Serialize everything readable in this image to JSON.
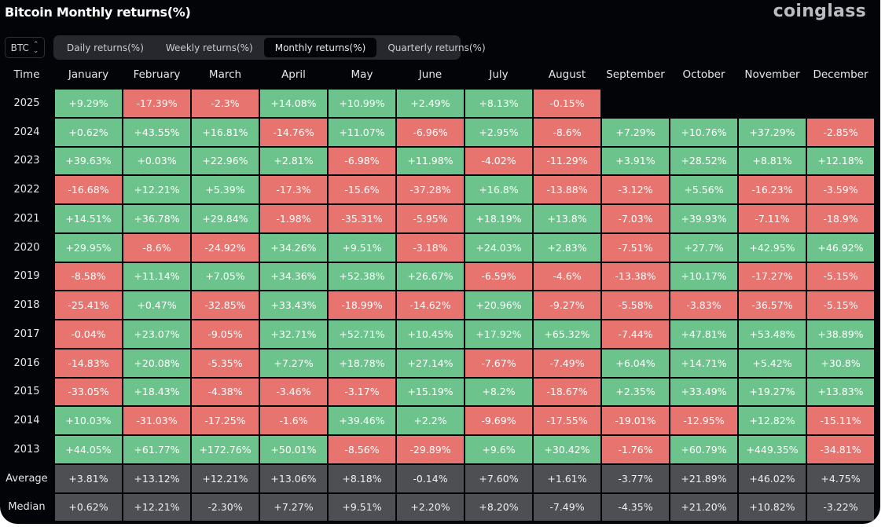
{
  "header": {
    "title": "Bitcoin Monthly returns(%)",
    "logo": "coinglass"
  },
  "asset_selector": {
    "value": "BTC",
    "icon": "chevron-up-down-icon"
  },
  "tabs": [
    {
      "label": "Daily returns(%)",
      "active": false
    },
    {
      "label": "Weekly returns(%)",
      "active": false
    },
    {
      "label": "Monthly returns(%)",
      "active": true
    },
    {
      "label": "Quarterly returns(%)",
      "active": false
    }
  ],
  "colors": {
    "positive": "#6cc48c",
    "negative": "#e8746f",
    "stat": "#4e4f53"
  },
  "table": {
    "time_label": "Time",
    "months": [
      "January",
      "February",
      "March",
      "April",
      "May",
      "June",
      "July",
      "August",
      "September",
      "October",
      "November",
      "December"
    ],
    "rows": [
      {
        "year": "2025",
        "values": [
          "+9.29%",
          "-17.39%",
          "-2.3%",
          "+14.08%",
          "+10.99%",
          "+2.49%",
          "+8.13%",
          "-0.15%",
          "",
          "",
          "",
          ""
        ]
      },
      {
        "year": "2024",
        "values": [
          "+0.62%",
          "+43.55%",
          "+16.81%",
          "-14.76%",
          "+11.07%",
          "-6.96%",
          "+2.95%",
          "-8.6%",
          "+7.29%",
          "+10.76%",
          "+37.29%",
          "-2.85%"
        ]
      },
      {
        "year": "2023",
        "values": [
          "+39.63%",
          "+0.03%",
          "+22.96%",
          "+2.81%",
          "-6.98%",
          "+11.98%",
          "-4.02%",
          "-11.29%",
          "+3.91%",
          "+28.52%",
          "+8.81%",
          "+12.18%"
        ]
      },
      {
        "year": "2022",
        "values": [
          "-16.68%",
          "+12.21%",
          "+5.39%",
          "-17.3%",
          "-15.6%",
          "-37.28%",
          "+16.8%",
          "-13.88%",
          "-3.12%",
          "+5.56%",
          "-16.23%",
          "-3.59%"
        ]
      },
      {
        "year": "2021",
        "values": [
          "+14.51%",
          "+36.78%",
          "+29.84%",
          "-1.98%",
          "-35.31%",
          "-5.95%",
          "+18.19%",
          "+13.8%",
          "-7.03%",
          "+39.93%",
          "-7.11%",
          "-18.9%"
        ]
      },
      {
        "year": "2020",
        "values": [
          "+29.95%",
          "-8.6%",
          "-24.92%",
          "+34.26%",
          "+9.51%",
          "-3.18%",
          "+24.03%",
          "+2.83%",
          "-7.51%",
          "+27.7%",
          "+42.95%",
          "+46.92%"
        ]
      },
      {
        "year": "2019",
        "values": [
          "-8.58%",
          "+11.14%",
          "+7.05%",
          "+34.36%",
          "+52.38%",
          "+26.67%",
          "-6.59%",
          "-4.6%",
          "-13.38%",
          "+10.17%",
          "-17.27%",
          "-5.15%"
        ]
      },
      {
        "year": "2018",
        "values": [
          "-25.41%",
          "+0.47%",
          "-32.85%",
          "+33.43%",
          "-18.99%",
          "-14.62%",
          "+20.96%",
          "-9.27%",
          "-5.58%",
          "-3.83%",
          "-36.57%",
          "-5.15%"
        ]
      },
      {
        "year": "2017",
        "values": [
          "-0.04%",
          "+23.07%",
          "-9.05%",
          "+32.71%",
          "+52.71%",
          "+10.45%",
          "+17.92%",
          "+65.32%",
          "-7.44%",
          "+47.81%",
          "+53.48%",
          "+38.89%"
        ]
      },
      {
        "year": "2016",
        "values": [
          "-14.83%",
          "+20.08%",
          "-5.35%",
          "+7.27%",
          "+18.78%",
          "+27.14%",
          "-7.67%",
          "-7.49%",
          "+6.04%",
          "+14.71%",
          "+5.42%",
          "+30.8%"
        ]
      },
      {
        "year": "2015",
        "values": [
          "-33.05%",
          "+18.43%",
          "-4.38%",
          "-3.46%",
          "-3.17%",
          "+15.19%",
          "+8.2%",
          "-18.67%",
          "+2.35%",
          "+33.49%",
          "+19.27%",
          "+13.83%"
        ]
      },
      {
        "year": "2014",
        "values": [
          "+10.03%",
          "-31.03%",
          "-17.25%",
          "-1.6%",
          "+39.46%",
          "+2.2%",
          "-9.69%",
          "-17.55%",
          "-19.01%",
          "-12.95%",
          "+12.82%",
          "-15.11%"
        ]
      },
      {
        "year": "2013",
        "values": [
          "+44.05%",
          "+61.77%",
          "+172.76%",
          "+50.01%",
          "-8.56%",
          "-29.89%",
          "+9.6%",
          "+30.42%",
          "-1.76%",
          "+60.79%",
          "+449.35%",
          "-34.81%"
        ]
      }
    ],
    "stats": [
      {
        "label": "Average",
        "values": [
          "+3.81%",
          "+13.12%",
          "+12.21%",
          "+13.06%",
          "+8.18%",
          "-0.14%",
          "+7.60%",
          "+1.61%",
          "-3.77%",
          "+21.89%",
          "+46.02%",
          "+4.75%"
        ]
      },
      {
        "label": "Median",
        "values": [
          "+0.62%",
          "+12.21%",
          "-2.30%",
          "+7.27%",
          "+9.51%",
          "+2.20%",
          "+8.20%",
          "-7.49%",
          "-4.35%",
          "+21.20%",
          "+10.82%",
          "-3.22%"
        ]
      }
    ]
  }
}
